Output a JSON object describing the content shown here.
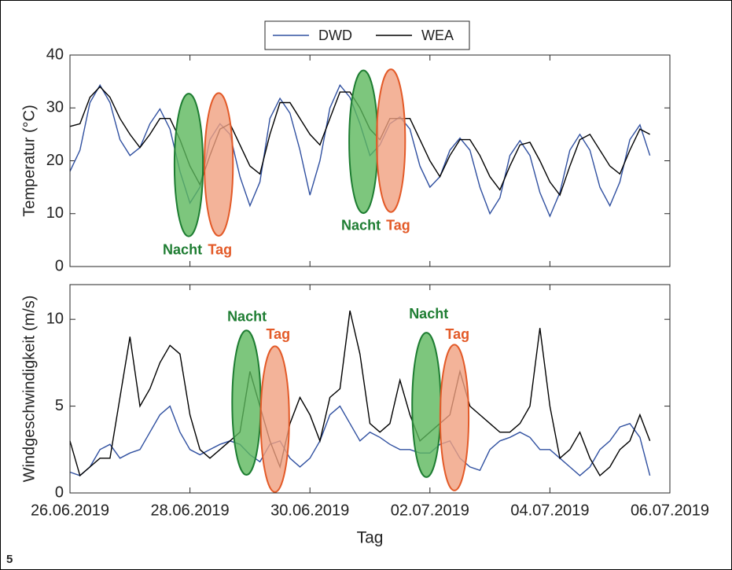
{
  "figure_label": "5",
  "legend": {
    "location": "north"
  },
  "chart_data": [
    {
      "type": "line",
      "ylabel": "Temperatur (°C)",
      "xlim": [
        0,
        240
      ],
      "xticks": [
        0,
        48,
        96,
        144,
        192,
        240
      ],
      "ylim": [
        0,
        40
      ],
      "yticks": [
        0,
        10,
        20,
        30,
        40
      ],
      "x": [
        0,
        4,
        8,
        12,
        16,
        20,
        24,
        28,
        32,
        36,
        40,
        44,
        48,
        52,
        56,
        60,
        64,
        68,
        72,
        76,
        80,
        84,
        88,
        92,
        96,
        100,
        104,
        108,
        112,
        116,
        120,
        124,
        128,
        132,
        136,
        140,
        144,
        148,
        152,
        156,
        160,
        164,
        168,
        172,
        176,
        180,
        184,
        188,
        192,
        196,
        200,
        204,
        208,
        212,
        216,
        220,
        224,
        228,
        232
      ],
      "series": [
        {
          "name": "DWD",
          "color": "#3050a0",
          "values": [
            18,
            22,
            31,
            34.3,
            31,
            24,
            21,
            22.5,
            27,
            29.8,
            26,
            18,
            12,
            15,
            24,
            27,
            25,
            17,
            11.5,
            16,
            28,
            31.8,
            29,
            22,
            13.5,
            20,
            30,
            34.3,
            32,
            27,
            21,
            23,
            27,
            28.3,
            26,
            19,
            15,
            17,
            22,
            24.3,
            22,
            15,
            10,
            13,
            21,
            23.8,
            21,
            14,
            9.5,
            14,
            22,
            25,
            22,
            15,
            11.5,
            16,
            24,
            26.8,
            21
          ]
        },
        {
          "name": "WEA",
          "color": "#000000",
          "values": [
            26.5,
            27,
            32,
            34,
            32,
            28,
            25,
            22.5,
            25,
            28,
            28,
            24,
            19,
            15.5,
            21,
            26,
            27,
            23,
            19,
            17.5,
            25,
            31,
            31,
            28,
            25,
            23,
            28,
            33,
            33,
            30,
            26,
            24,
            28,
            28,
            28,
            24,
            20,
            17,
            21,
            24,
            24,
            21,
            17,
            14.5,
            19,
            23,
            23.5,
            20,
            16,
            13.5,
            19,
            24,
            25,
            22,
            19,
            17.5,
            22,
            26,
            25
          ]
        }
      ],
      "annotations": [
        {
          "text": "Nacht",
          "color": "#1e7d32",
          "fill": "#5cb85c",
          "x": 45,
          "y": 3,
          "ellipse": {
            "cx": 47.5,
            "cy": 19.2,
            "rx": 5.7,
            "ry": 13.5
          }
        },
        {
          "text": "Tag",
          "color": "#e35a28",
          "fill": "#f0a080",
          "x": 60,
          "y": 3,
          "ellipse": {
            "cx": 59.5,
            "cy": 19.3,
            "rx": 5.7,
            "ry": 13.5
          }
        },
        {
          "text": "Nacht",
          "color": "#1e7d32",
          "fill": "#5cb85c",
          "x": 116.4,
          "y": 7.6,
          "ellipse": {
            "cx": 117.4,
            "cy": 23.6,
            "rx": 5.7,
            "ry": 13.5
          }
        },
        {
          "text": "Tag",
          "color": "#e35a28",
          "fill": "#f0a080",
          "x": 131.3,
          "y": 7.6,
          "ellipse": {
            "cx": 128.4,
            "cy": 23.8,
            "rx": 5.7,
            "ry": 13.5
          }
        }
      ]
    },
    {
      "type": "line",
      "ylabel": "Windgeschwindigkeit (m/s)",
      "xlabel": "Tag",
      "xlim": [
        0,
        240
      ],
      "xticks": [
        {
          "value": 0,
          "label": "26.06.2019"
        },
        {
          "value": 48,
          "label": "28.06.2019"
        },
        {
          "value": 96,
          "label": "30.06.2019"
        },
        {
          "value": 144,
          "label": "02.07.2019"
        },
        {
          "value": 192,
          "label": "04.07.2019"
        },
        {
          "value": 240,
          "label": "06.07.2019"
        }
      ],
      "ylim": [
        0,
        12
      ],
      "yticks": [
        0,
        5,
        10
      ],
      "x": [
        0,
        4,
        8,
        12,
        16,
        20,
        24,
        28,
        32,
        36,
        40,
        44,
        48,
        52,
        56,
        60,
        64,
        68,
        72,
        76,
        80,
        84,
        88,
        92,
        96,
        100,
        104,
        108,
        112,
        116,
        120,
        124,
        128,
        132,
        136,
        140,
        144,
        148,
        152,
        156,
        160,
        164,
        168,
        172,
        176,
        180,
        184,
        188,
        192,
        196,
        200,
        204,
        208,
        212,
        216,
        220,
        224,
        228,
        232
      ],
      "series": [
        {
          "color": "#3050a0",
          "values": [
            1.2,
            1.0,
            1.5,
            2.5,
            2.8,
            2.0,
            2.3,
            2.5,
            3.5,
            4.5,
            5.0,
            3.5,
            2.5,
            2.2,
            2.5,
            2.8,
            3.0,
            2.8,
            2.2,
            1.8,
            2.8,
            3.0,
            2.0,
            1.5,
            2.0,
            3.0,
            4.5,
            5.0,
            4.0,
            3.0,
            3.5,
            3.2,
            2.8,
            2.5,
            2.5,
            2.3,
            2.3,
            2.8,
            3.0,
            2.0,
            1.5,
            1.3,
            2.5,
            3.0,
            3.2,
            3.5,
            3.2,
            2.5,
            2.5,
            2.0,
            1.5,
            1.0,
            1.5,
            2.5,
            3.0,
            3.8,
            4.0,
            3.2,
            1.0
          ]
        },
        {
          "color": "#000000",
          "values": [
            3.0,
            1.0,
            1.5,
            2.0,
            2.0,
            5.5,
            9.0,
            5.0,
            6.0,
            7.5,
            8.5,
            8.0,
            4.5,
            2.5,
            2.0,
            2.5,
            3.0,
            3.5,
            7.0,
            5.0,
            3.0,
            1.5,
            4.0,
            5.5,
            4.5,
            3.0,
            5.5,
            6.0,
            10.5,
            8.0,
            4.0,
            3.5,
            4.0,
            6.5,
            4.5,
            3.0,
            3.5,
            4.0,
            4.5,
            7.0,
            5.0,
            4.5,
            4.0,
            3.5,
            3.5,
            4.0,
            5.0,
            9.5,
            5.0,
            2.0,
            2.5,
            3.5,
            2.0,
            1.0,
            1.5,
            2.5,
            3.0,
            4.5,
            3.0
          ]
        }
      ],
      "annotations": [
        {
          "text": "Nacht",
          "color": "#1e7d32",
          "fill": "#5cb85c",
          "x": 70.8,
          "y": 10.1,
          "ellipse": {
            "cx": 70.6,
            "cy": 5.2,
            "rx": 5.7,
            "ry": 4.16
          }
        },
        {
          "text": "Tag",
          "color": "#e35a28",
          "fill": "#f0a080",
          "x": 83.3,
          "y": 9.1,
          "ellipse": {
            "cx": 82,
            "cy": 4.25,
            "rx": 5.7,
            "ry": 4.2
          }
        },
        {
          "text": "Nacht",
          "color": "#1e7d32",
          "fill": "#5cb85c",
          "x": 143.5,
          "y": 10.27,
          "ellipse": {
            "cx": 142.6,
            "cy": 5.07,
            "rx": 5.7,
            "ry": 4.16
          }
        },
        {
          "text": "Tag",
          "color": "#e35a28",
          "fill": "#f0a080",
          "x": 155,
          "y": 9.1,
          "ellipse": {
            "cx": 153.8,
            "cy": 4.34,
            "rx": 5.7,
            "ry": 4.2
          }
        }
      ]
    }
  ]
}
